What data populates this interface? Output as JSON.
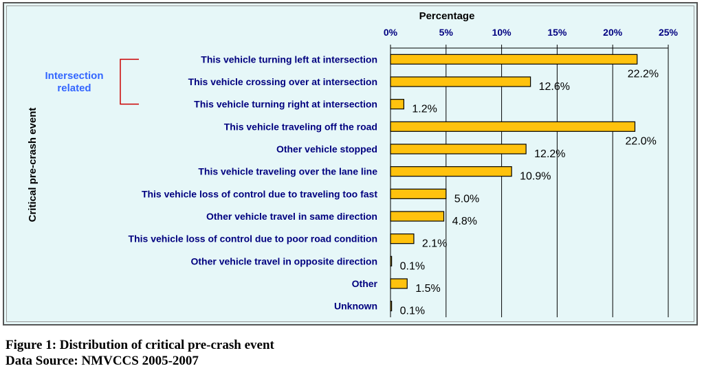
{
  "chart_data": {
    "type": "bar",
    "orientation": "horizontal",
    "xlabel": "Percentage",
    "ylabel": "Critical pre-crash event",
    "xlim": [
      0,
      25
    ],
    "x_ticks": [
      "0%",
      "5%",
      "10%",
      "15%",
      "20%",
      "25%"
    ],
    "x_tick_values": [
      0,
      5,
      10,
      15,
      20,
      25
    ],
    "grid": "vertical",
    "categories": [
      "This vehicle turning left at intersection",
      "This vehicle crossing over at intersection",
      "This vehicle turning right at intersection",
      "This vehicle traveling off the road",
      "Other vehicle stopped",
      "This vehicle traveling over the lane line",
      "This vehicle loss of control due to traveling too fast",
      "Other vehicle travel in same direction",
      "This vehicle loss of control due to poor road condition",
      "Other vehicle travel in opposite direction",
      "Other",
      "Unknown"
    ],
    "values": [
      22.2,
      12.6,
      1.2,
      22.0,
      12.2,
      10.9,
      5.0,
      4.8,
      2.1,
      0.1,
      1.5,
      0.1
    ],
    "data_labels": [
      "22.2%",
      "12.6%",
      "1.2%",
      "22.0%",
      "12.2%",
      "10.9%",
      "5.0%",
      "4.8%",
      "2.1%",
      "0.1%",
      "1.5%",
      "0.1%"
    ],
    "annotation": {
      "text_lines": [
        "Intersection",
        "related"
      ],
      "bracket_covers": [
        0,
        1,
        2
      ]
    },
    "colors": {
      "bar_fill": "#ffc20e",
      "bar_stroke": "#000000",
      "category_text": "#00007f",
      "annotation_text": "#3366ff",
      "bracket": "#cc0000",
      "plot_background": "#e6f7f8",
      "grid": "#000000"
    }
  },
  "caption": {
    "line1": "Figure 1: Distribution of critical pre-crash event",
    "line2": "Data Source: NMVCCS 2005-2007"
  }
}
